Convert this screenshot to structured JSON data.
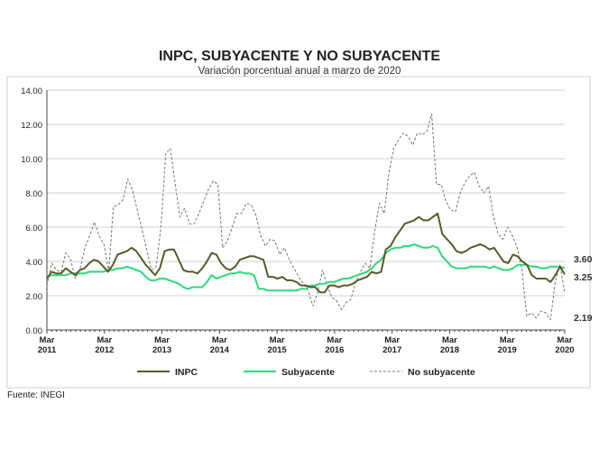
{
  "title": "INPC, SUBYACENTE Y NO SUBYACENTE",
  "subtitle": "Variación porcentual anual a marzo de 2020",
  "source": "Fuente: INEGI",
  "chart_data": {
    "type": "line",
    "ylim": [
      0,
      14
    ],
    "yticks": [
      "0.00",
      "2.00",
      "4.00",
      "6.00",
      "8.00",
      "10.00",
      "12.00",
      "14.00"
    ],
    "xtick_labels": [
      [
        "Mar",
        "2011"
      ],
      [
        "Mar",
        "2012"
      ],
      [
        "Mar",
        "2013"
      ],
      [
        "Mar",
        "2014"
      ],
      [
        "Mar",
        "2015"
      ],
      [
        "Mar",
        "2016"
      ],
      [
        "Mar",
        "2017"
      ],
      [
        "Mar",
        "2018"
      ],
      [
        "Mar",
        "2019"
      ],
      [
        "Mar",
        "2020"
      ]
    ],
    "x_start": "2011-03",
    "x_end": "2020-03",
    "grid": true,
    "legend_position": "bottom",
    "end_labels": [
      "3.60",
      "3.25",
      "2.19"
    ],
    "series": [
      {
        "name": "INPC",
        "color": "#5b5a2a",
        "dash": "",
        "values": [
          3.0,
          3.4,
          3.3,
          3.3,
          3.6,
          3.4,
          3.2,
          3.5,
          3.6,
          3.9,
          4.1,
          4.0,
          3.7,
          3.4,
          3.8,
          4.4,
          4.5,
          4.6,
          4.8,
          4.6,
          4.2,
          3.8,
          3.5,
          3.2,
          3.6,
          4.6,
          4.7,
          4.7,
          4.1,
          3.5,
          3.4,
          3.4,
          3.3,
          3.6,
          4.0,
          4.5,
          4.4,
          3.9,
          3.6,
          3.5,
          3.7,
          4.1,
          4.2,
          4.3,
          4.3,
          4.2,
          4.1,
          3.1,
          3.1,
          3.0,
          3.1,
          2.9,
          2.9,
          2.8,
          2.6,
          2.6,
          2.5,
          2.5,
          2.2,
          2.2,
          2.6,
          2.6,
          2.5,
          2.6,
          2.6,
          2.7,
          2.9,
          3.0,
          3.1,
          3.4,
          3.3,
          3.4,
          4.7,
          4.9,
          5.4,
          5.8,
          6.2,
          6.3,
          6.4,
          6.6,
          6.4,
          6.4,
          6.6,
          6.8,
          5.6,
          5.3,
          5.0,
          4.6,
          4.5,
          4.6,
          4.8,
          4.9,
          5.0,
          4.9,
          4.7,
          4.8,
          4.4,
          4.0,
          3.9,
          4.4,
          4.3,
          4.0,
          3.8,
          3.2,
          3.0,
          3.0,
          3.0,
          2.8,
          3.2,
          3.7,
          3.25
        ]
      },
      {
        "name": "Subyacente",
        "color": "#2ed87a",
        "dash": "",
        "values": [
          3.1,
          3.2,
          3.2,
          3.2,
          3.2,
          3.3,
          3.3,
          3.3,
          3.3,
          3.4,
          3.4,
          3.4,
          3.4,
          3.5,
          3.5,
          3.6,
          3.6,
          3.7,
          3.6,
          3.5,
          3.4,
          3.1,
          2.9,
          2.9,
          3.0,
          3.0,
          2.9,
          2.8,
          2.7,
          2.5,
          2.4,
          2.5,
          2.5,
          2.5,
          2.8,
          3.2,
          3.0,
          3.1,
          3.2,
          3.3,
          3.3,
          3.4,
          3.3,
          3.3,
          3.2,
          2.4,
          2.4,
          2.3,
          2.3,
          2.3,
          2.3,
          2.3,
          2.3,
          2.3,
          2.4,
          2.4,
          2.6,
          2.6,
          2.7,
          2.7,
          2.8,
          2.8,
          2.9,
          3.0,
          3.0,
          3.1,
          3.2,
          3.3,
          3.4,
          3.6,
          3.9,
          4.1,
          4.5,
          4.7,
          4.8,
          4.8,
          4.9,
          4.9,
          5.0,
          4.9,
          4.8,
          4.8,
          4.9,
          4.8,
          4.3,
          4.0,
          3.7,
          3.6,
          3.6,
          3.6,
          3.7,
          3.7,
          3.7,
          3.7,
          3.6,
          3.7,
          3.6,
          3.5,
          3.5,
          3.6,
          3.8,
          3.8,
          3.8,
          3.7,
          3.7,
          3.6,
          3.6,
          3.7,
          3.7,
          3.7,
          3.6
        ]
      },
      {
        "name": "No subyacente",
        "color": "#777777",
        "dash": "3,2",
        "values": [
          2.6,
          3.9,
          3.5,
          3.4,
          4.5,
          4.1,
          3.0,
          3.6,
          4.8,
          5.5,
          6.3,
          5.5,
          5.0,
          3.4,
          7.2,
          7.3,
          7.6,
          8.8,
          8.2,
          7.0,
          5.9,
          4.7,
          3.5,
          3.7,
          6.0,
          10.3,
          10.6,
          8.5,
          6.6,
          7.1,
          6.2,
          6.2,
          6.8,
          7.5,
          8.2,
          8.7,
          8.5,
          4.8,
          5.2,
          6.0,
          6.8,
          6.8,
          7.4,
          7.3,
          6.7,
          5.5,
          4.9,
          5.3,
          5.2,
          4.4,
          4.8,
          4.1,
          3.6,
          3.1,
          2.7,
          2.3,
          1.4,
          2.2,
          3.5,
          2.6,
          1.9,
          1.7,
          1.2,
          1.6,
          1.8,
          2.8,
          3.4,
          3.9,
          3.6,
          5.8,
          7.4,
          6.8,
          9.2,
          10.6,
          11.1,
          11.5,
          11.3,
          10.8,
          11.5,
          11.4,
          11.6,
          12.6,
          8.5,
          8.5,
          7.5,
          7.0,
          6.9,
          8.0,
          8.6,
          9.0,
          9.2,
          8.4,
          8.0,
          8.4,
          6.6,
          5.6,
          5.3,
          6.0,
          5.5,
          4.8,
          3.5,
          0.8,
          1.0,
          0.7,
          1.1,
          1.0,
          0.6,
          2.8,
          3.8,
          2.19
        ]
      }
    ]
  }
}
